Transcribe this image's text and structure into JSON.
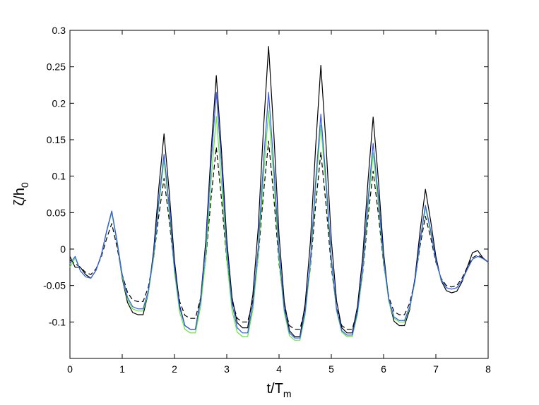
{
  "chart_data": {
    "type": "line",
    "x_label": "t/T",
    "x_label_sub": "m",
    "y_label": "ζ/h",
    "y_label_sub": "0",
    "xlim": [
      0,
      8
    ],
    "xticks": [
      0,
      1,
      2,
      3,
      4,
      5,
      6,
      7,
      8
    ],
    "ylim": [
      -0.15,
      0.3
    ],
    "yticks": [
      -0.1,
      -0.05,
      0,
      0.05,
      0.1,
      0.15,
      0.2,
      0.25,
      0.3
    ],
    "x": [
      0,
      0.1,
      0.2,
      0.3,
      0.4,
      0.5,
      0.6,
      0.7,
      0.8,
      0.9,
      1,
      1.1,
      1.2,
      1.3,
      1.4,
      1.5,
      1.6,
      1.7,
      1.8,
      1.9,
      2,
      2.1,
      2.2,
      2.3,
      2.4,
      2.5,
      2.6,
      2.7,
      2.8,
      2.9,
      3,
      3.1,
      3.2,
      3.3,
      3.4,
      3.5,
      3.6,
      3.7,
      3.8,
      3.9,
      4,
      4.1,
      4.2,
      4.3,
      4.4,
      4.5,
      4.6,
      4.7,
      4.8,
      4.9,
      5,
      5.1,
      5.2,
      5.3,
      5.4,
      5.5,
      5.6,
      5.7,
      5.8,
      5.9,
      6,
      6.1,
      6.2,
      6.3,
      6.4,
      6.5,
      6.6,
      6.7,
      6.8,
      6.9,
      7,
      7.1,
      7.2,
      7.3,
      7.4,
      7.5,
      7.6,
      7.7,
      7.8,
      7.9,
      8
    ],
    "series": [
      {
        "color": "#000000",
        "dash": false,
        "values": [
          -0.01,
          -0.025,
          -0.025,
          -0.035,
          -0.04,
          -0.029,
          -0.008,
          0.024,
          0.052,
          0.009,
          -0.04,
          -0.073,
          -0.087,
          -0.09,
          -0.09,
          -0.06,
          -0.003,
          0.084,
          0.158,
          0.078,
          -0.016,
          -0.078,
          -0.105,
          -0.11,
          -0.11,
          -0.068,
          0.012,
          0.134,
          0.238,
          0.134,
          0.013,
          -0.066,
          -0.101,
          -0.108,
          -0.108,
          -0.062,
          0.027,
          0.162,
          0.278,
          0.159,
          0.019,
          -0.072,
          -0.112,
          -0.12,
          -0.12,
          -0.075,
          0.01,
          0.14,
          0.252,
          0.142,
          0.013,
          -0.071,
          -0.108,
          -0.115,
          -0.115,
          -0.079,
          -0.011,
          0.092,
          0.181,
          0.095,
          -0.005,
          -0.071,
          -0.099,
          -0.105,
          -0.105,
          -0.083,
          -0.04,
          0.026,
          0.082,
          0.039,
          -0.01,
          -0.043,
          -0.057,
          -0.06,
          -0.058,
          -0.045,
          -0.025,
          -0.005,
          -0.002,
          -0.012,
          -0.018
        ]
      },
      {
        "color": "#000000",
        "dash": true,
        "values": [
          -0.015,
          -0.02,
          -0.025,
          -0.032,
          -0.035,
          -0.027,
          -0.011,
          0.014,
          0.035,
          0.003,
          -0.035,
          -0.059,
          -0.07,
          -0.072,
          -0.072,
          -0.052,
          -0.013,
          0.046,
          0.097,
          0.039,
          -0.028,
          -0.072,
          -0.091,
          -0.095,
          -0.095,
          -0.067,
          -0.013,
          0.07,
          0.14,
          0.068,
          -0.016,
          -0.071,
          -0.095,
          -0.1,
          -0.1,
          -0.07,
          -0.013,
          0.074,
          0.148,
          0.071,
          -0.02,
          -0.079,
          -0.105,
          -0.11,
          -0.11,
          -0.081,
          -0.025,
          0.06,
          0.133,
          0.06,
          -0.025,
          -0.081,
          -0.105,
          -0.11,
          -0.11,
          -0.084,
          -0.034,
          0.042,
          0.107,
          0.048,
          -0.021,
          -0.066,
          -0.086,
          -0.09,
          -0.09,
          -0.074,
          -0.043,
          0.005,
          0.045,
          0.016,
          -0.018,
          -0.04,
          -0.05,
          -0.052,
          -0.05,
          -0.04,
          -0.025,
          -0.012,
          -0.008,
          -0.012,
          -0.018
        ]
      },
      {
        "color": "#5ee830",
        "dash": false,
        "values": [
          -0.025,
          -0.012,
          -0.03,
          -0.038,
          -0.04,
          -0.029,
          -0.009,
          0.023,
          0.05,
          0.01,
          -0.038,
          -0.069,
          -0.082,
          -0.085,
          -0.085,
          -0.06,
          -0.013,
          0.06,
          0.122,
          0.051,
          -0.032,
          -0.087,
          -0.11,
          -0.115,
          -0.115,
          -0.079,
          -0.011,
          0.093,
          0.182,
          0.091,
          -0.014,
          -0.084,
          -0.114,
          -0.12,
          -0.12,
          -0.083,
          -0.011,
          0.097,
          0.19,
          0.096,
          -0.015,
          -0.087,
          -0.119,
          -0.125,
          -0.125,
          -0.09,
          -0.022,
          0.082,
          0.17,
          0.083,
          -0.018,
          -0.085,
          -0.114,
          -0.12,
          -0.12,
          -0.09,
          -0.032,
          0.056,
          0.132,
          0.062,
          -0.019,
          -0.072,
          -0.095,
          -0.1,
          -0.1,
          -0.081,
          -0.045,
          0.01,
          0.057,
          0.023,
          -0.016,
          -0.042,
          -0.053,
          -0.055,
          -0.053,
          -0.043,
          -0.028,
          -0.014,
          -0.01,
          -0.013,
          -0.018
        ]
      },
      {
        "color": "#3355ff",
        "dash": false,
        "values": [
          -0.02,
          -0.01,
          -0.03,
          -0.038,
          -0.04,
          -0.029,
          -0.008,
          0.024,
          0.052,
          0.012,
          -0.035,
          -0.066,
          -0.079,
          -0.082,
          -0.082,
          -0.057,
          -0.008,
          0.066,
          0.13,
          0.058,
          -0.026,
          -0.081,
          -0.105,
          -0.11,
          -0.11,
          -0.071,
          0.004,
          0.118,
          0.215,
          0.116,
          0.001,
          -0.075,
          -0.108,
          -0.115,
          -0.115,
          -0.075,
          0.001,
          0.116,
          0.215,
          0.114,
          -0.004,
          -0.082,
          -0.115,
          -0.122,
          -0.122,
          -0.085,
          -0.015,
          0.093,
          0.185,
          0.094,
          -0.012,
          -0.082,
          -0.112,
          -0.118,
          -0.118,
          -0.086,
          -0.026,
          0.066,
          0.145,
          0.072,
          -0.013,
          -0.069,
          -0.093,
          -0.098,
          -0.098,
          -0.079,
          -0.043,
          0.013,
          0.06,
          0.026,
          -0.015,
          -0.041,
          -0.053,
          -0.055,
          -0.053,
          -0.043,
          -0.028,
          -0.014,
          -0.01,
          -0.013,
          -0.018
        ]
      }
    ]
  }
}
